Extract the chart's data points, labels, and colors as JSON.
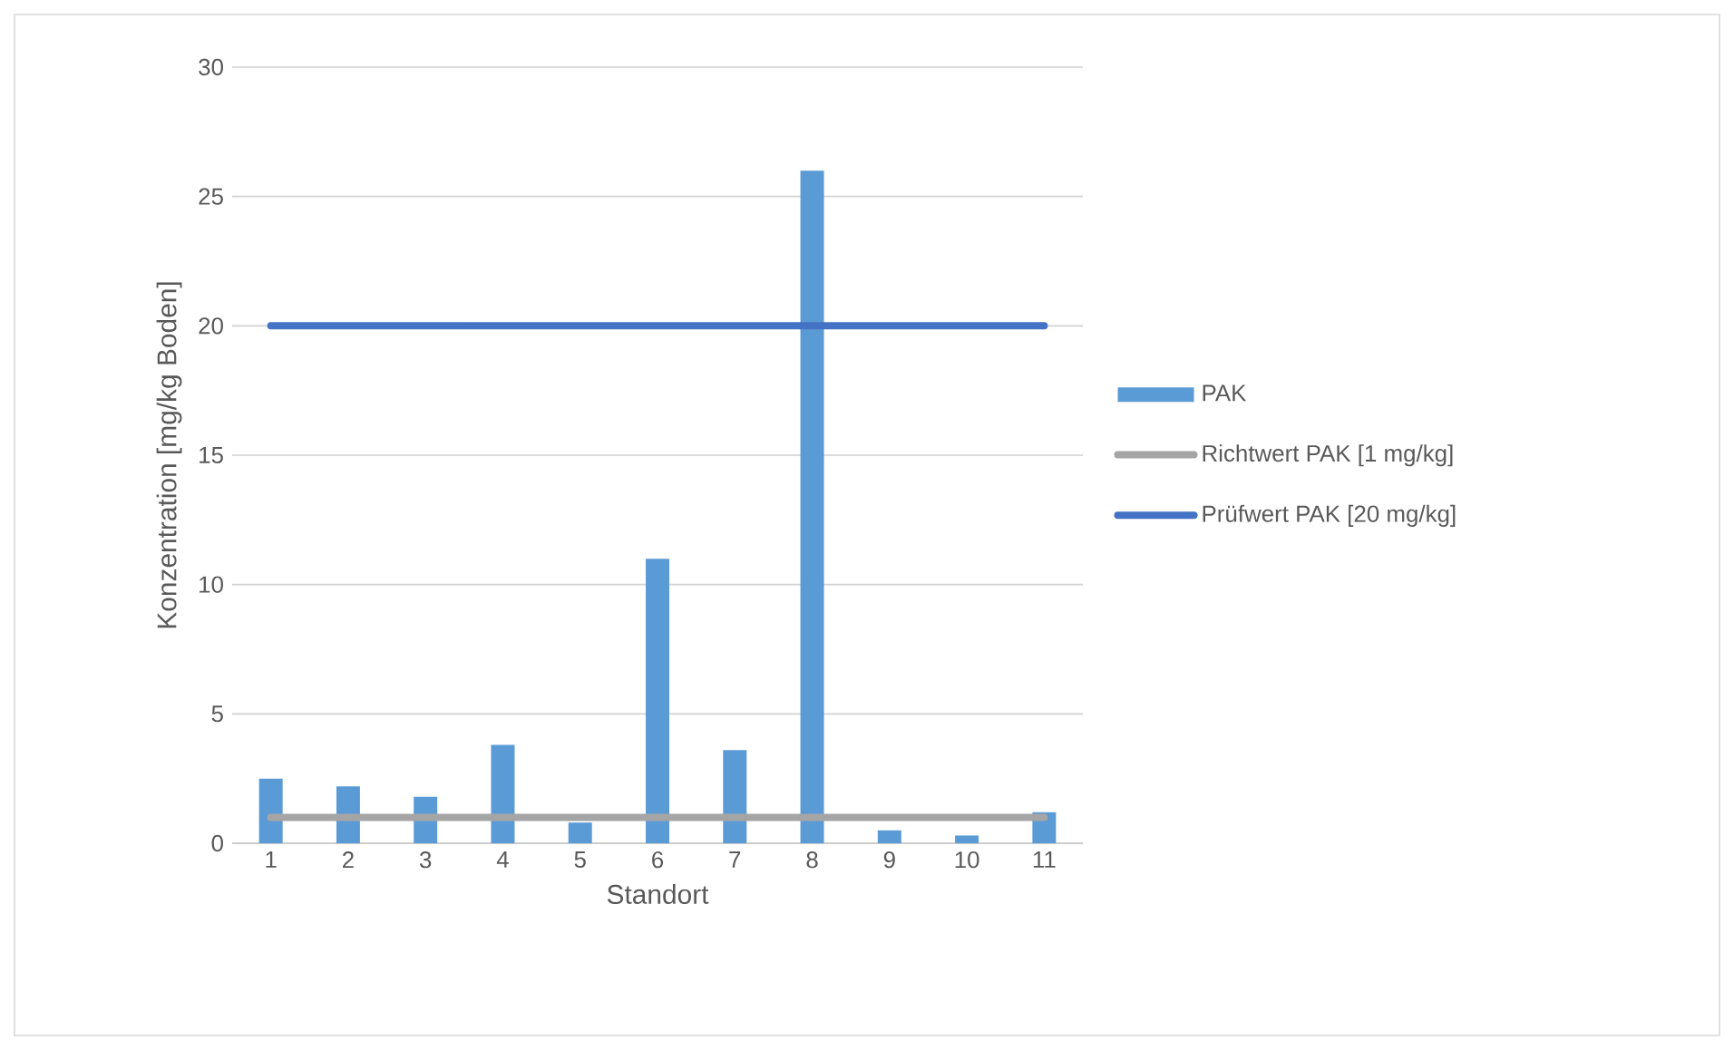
{
  "chart_data": {
    "type": "bar",
    "xlabel": "Standort",
    "ylabel": "Konzentration [mg/kg Boden]",
    "categories": [
      "1",
      "2",
      "3",
      "4",
      "5",
      "6",
      "7",
      "8",
      "9",
      "10",
      "11"
    ],
    "series": [
      {
        "name": "PAK",
        "color": "#5b9bd5",
        "values": [
          2.5,
          2.2,
          1.8,
          3.8,
          0.8,
          11,
          3.6,
          26,
          0.5,
          0.3,
          1.2
        ]
      },
      {
        "name": "Richtwert PAK  [1 mg/kg]",
        "type": "line",
        "color": "#a5a5a5",
        "values": [
          1,
          1,
          1,
          1,
          1,
          1,
          1,
          1,
          1,
          1,
          1
        ]
      },
      {
        "name": "Prüfwert PAK  [20 mg/kg]",
        "type": "line",
        "color": "#4472c4",
        "values": [
          20,
          20,
          20,
          20,
          20,
          20,
          20,
          20,
          20,
          20,
          20
        ]
      }
    ],
    "ylim": [
      0,
      30
    ],
    "yticks": [
      0,
      5,
      10,
      15,
      20,
      25,
      30
    ],
    "grid": "y",
    "legend": "right"
  }
}
